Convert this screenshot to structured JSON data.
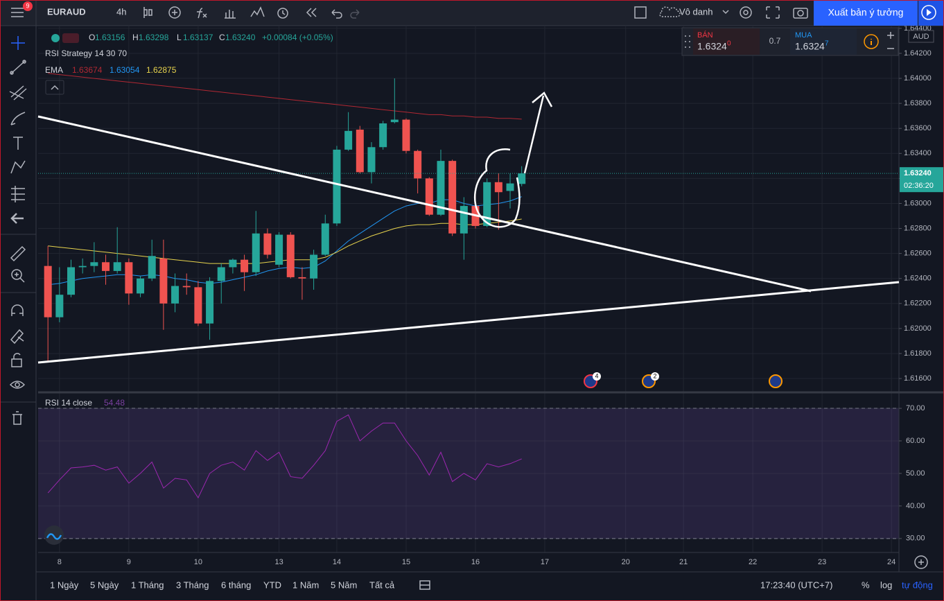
{
  "toolbar": {
    "badge": "9",
    "symbol": "EURAUD",
    "interval": "4h",
    "layout_name": "Vô danh",
    "publish": "Xuất bản ý tưởng"
  },
  "trade": {
    "sell_label": "BÁN",
    "sell_price": "1.6324",
    "sell_pip": "0",
    "spread": "0.7",
    "buy_label": "MUA",
    "buy_price": "1.6324",
    "buy_pip": "7"
  },
  "header": {
    "labels": [
      "O",
      "H",
      "L",
      "C"
    ],
    "values": [
      "1.63156",
      "1.63298",
      "1.63137",
      "1.63240"
    ],
    "change": "+0.00084 (+0.05%)"
  },
  "indicators": {
    "strategy": "RSI Strategy 14 30 70",
    "ema": "EMA"
  },
  "axis_currency": "AUD",
  "last_price": {
    "value": 1.6324,
    "label": "1.63240"
  },
  "countdown": "02:36:20",
  "events": [
    "4",
    "2"
  ],
  "bottom": {
    "ranges": [
      "1 Ngày",
      "5 Ngày",
      "1 Tháng",
      "3 Tháng",
      "6 tháng",
      "YTD",
      "1 Năm",
      "5 Năm",
      "Tất cả"
    ],
    "time": "17:23:40 (UTC+7)",
    "percent": "%",
    "log": "log",
    "auto": "tự động"
  },
  "chart_data": {
    "type": "candlestick",
    "up_color": "#26a69a",
    "down_color": "#ef5350",
    "grid": true,
    "x": [
      -1,
      0,
      1,
      2,
      3,
      4,
      5,
      6,
      7,
      8,
      9,
      10,
      11,
      12,
      13,
      14,
      15,
      16,
      17,
      18,
      19,
      20,
      21,
      22,
      23,
      24,
      25,
      26,
      27,
      28,
      29,
      30,
      31,
      32,
      33,
      34,
      35,
      36,
      37,
      38,
      39,
      40
    ],
    "candles": {
      "open": [
        1.625,
        1.6209,
        1.6227,
        1.6249,
        1.625,
        1.6253,
        1.6246,
        1.6253,
        1.6228,
        1.624,
        1.6256,
        1.622,
        1.6234,
        1.6233,
        1.6204,
        1.6238,
        1.6249,
        1.6255,
        1.6245,
        1.6276,
        1.6251,
        1.6275,
        1.6241,
        1.624,
        1.6259,
        1.6284,
        1.6343,
        1.6359,
        1.6325,
        1.6345,
        1.6365,
        1.6367,
        1.6342,
        1.632,
        1.6291,
        1.6334,
        1.6276,
        1.6298,
        1.6282,
        1.6317,
        1.631,
        1.63156
      ],
      "high": [
        1.6266,
        1.6249,
        1.6255,
        1.6256,
        1.6269,
        1.6259,
        1.6281,
        1.6256,
        1.6242,
        1.6271,
        1.6271,
        1.6244,
        1.6244,
        1.6238,
        1.6241,
        1.6252,
        1.6256,
        1.6259,
        1.6294,
        1.628,
        1.6277,
        1.6277,
        1.6249,
        1.6263,
        1.6291,
        1.6346,
        1.6373,
        1.6362,
        1.6349,
        1.6366,
        1.64,
        1.6368,
        1.6343,
        1.6321,
        1.6343,
        1.6335,
        1.6305,
        1.6312,
        1.632,
        1.6324,
        1.6324,
        1.63298
      ],
      "low": [
        1.6173,
        1.6205,
        1.6225,
        1.6244,
        1.6245,
        1.6235,
        1.6244,
        1.6219,
        1.6225,
        1.6238,
        1.6199,
        1.6213,
        1.6227,
        1.6202,
        1.6191,
        1.622,
        1.6244,
        1.623,
        1.6242,
        1.6256,
        1.6249,
        1.624,
        1.6223,
        1.6231,
        1.6258,
        1.6282,
        1.6342,
        1.6324,
        1.6316,
        1.6343,
        1.6364,
        1.634,
        1.6308,
        1.629,
        1.629,
        1.6274,
        1.6255,
        1.628,
        1.6281,
        1.6279,
        1.6296,
        1.63137
      ],
      "close": [
        1.6209,
        1.6227,
        1.6249,
        1.625,
        1.6253,
        1.6246,
        1.6253,
        1.6228,
        1.624,
        1.6258,
        1.622,
        1.6234,
        1.6233,
        1.6204,
        1.6238,
        1.6249,
        1.6255,
        1.6245,
        1.6276,
        1.6259,
        1.6275,
        1.6241,
        1.624,
        1.6259,
        1.6284,
        1.6343,
        1.6358,
        1.6325,
        1.6345,
        1.6364,
        1.6367,
        1.6342,
        1.632,
        1.6291,
        1.6334,
        1.6276,
        1.6298,
        1.6282,
        1.6317,
        1.6309,
        1.6316,
        1.6324
      ]
    },
    "series": [
      {
        "color": "#b22833",
        "values": [
          1.6404,
          1.6403,
          1.6402,
          1.6401,
          1.64,
          1.6399,
          1.6398,
          1.6397,
          1.6396,
          1.6395,
          1.6394,
          1.6393,
          1.6392,
          1.6391,
          1.639,
          1.6389,
          1.6388,
          1.6387,
          1.6386,
          1.6385,
          1.6384,
          1.6383,
          1.6382,
          1.6381,
          1.638,
          1.6379,
          1.6378,
          1.6377,
          1.6376,
          1.6375,
          1.6374,
          1.6373,
          1.6372,
          1.6371,
          1.6371,
          1.637,
          1.637,
          1.6369,
          1.6369,
          1.6368,
          1.6368,
          1.63674
        ]
      },
      {
        "color": "#2196f3",
        "values": [
          1.6235,
          1.6236,
          1.6238,
          1.624,
          1.6241,
          1.6242,
          1.6243,
          1.6243,
          1.6242,
          1.6243,
          1.6242,
          1.624,
          1.6239,
          1.6237,
          1.6236,
          1.6237,
          1.6239,
          1.6241,
          1.6243,
          1.6246,
          1.6248,
          1.6249,
          1.6248,
          1.6249,
          1.6254,
          1.6262,
          1.627,
          1.6276,
          1.6282,
          1.6288,
          1.6294,
          1.6298,
          1.63,
          1.63,
          1.6303,
          1.6303,
          1.63,
          1.6298,
          1.6299,
          1.63,
          1.6302,
          1.63054
        ]
      },
      {
        "color": "#e8d44d",
        "values": [
          1.6266,
          1.6265,
          1.6264,
          1.6263,
          1.6262,
          1.6261,
          1.626,
          1.6259,
          1.6258,
          1.6257,
          1.6256,
          1.6255,
          1.6254,
          1.6253,
          1.6252,
          1.6252,
          1.6252,
          1.6252,
          1.6252,
          1.6253,
          1.6254,
          1.6255,
          1.6255,
          1.6255,
          1.6257,
          1.6261,
          1.6266,
          1.627,
          1.6274,
          1.6277,
          1.628,
          1.6282,
          1.6283,
          1.6283,
          1.6284,
          1.6284,
          1.6283,
          1.6283,
          1.6284,
          1.6285,
          1.6286,
          1.62875
        ]
      }
    ],
    "xlim": [
      -1.85,
      72.65
    ],
    "xticks": [
      {
        "value": 0,
        "label": "8"
      },
      {
        "value": 6,
        "label": "9"
      },
      {
        "value": 12,
        "label": "10"
      },
      {
        "value": 19,
        "label": "13"
      },
      {
        "value": 24,
        "label": "14"
      },
      {
        "value": 30,
        "label": "15"
      },
      {
        "value": 36,
        "label": "16"
      },
      {
        "value": 42,
        "label": "17"
      },
      {
        "value": 49,
        "label": "20"
      },
      {
        "value": 54,
        "label": "21"
      },
      {
        "value": 60,
        "label": "22"
      },
      {
        "value": 66,
        "label": "23"
      },
      {
        "value": 72,
        "label": "24"
      }
    ],
    "ylim": [
      1.61495,
      1.64416
    ],
    "yticks": [
      {
        "value": 1.616,
        "label": "1.61600"
      },
      {
        "value": 1.618,
        "label": "1.61800"
      },
      {
        "value": 1.62,
        "label": "1.62000"
      },
      {
        "value": 1.622,
        "label": "1.62200"
      },
      {
        "value": 1.624,
        "label": "1.62400"
      },
      {
        "value": 1.626,
        "label": "1.62600"
      },
      {
        "value": 1.628,
        "label": "1.62800"
      },
      {
        "value": 1.63,
        "label": "1.63000"
      },
      {
        "value": 1.632,
        "label": "1.63200"
      },
      {
        "value": 1.634,
        "label": "1.63400"
      },
      {
        "value": 1.636,
        "label": "1.63600"
      },
      {
        "value": 1.638,
        "label": "1.63800"
      },
      {
        "value": 1.64,
        "label": "1.64000"
      },
      {
        "value": 1.642,
        "label": "1.64200"
      },
      {
        "value": 1.644,
        "label": "1.64400"
      }
    ],
    "rsi": {
      "name": "RSI 14 close",
      "color": "#9c27b0",
      "values": [
        44,
        48,
        51.7,
        52,
        52.5,
        51,
        52,
        47,
        50,
        53.5,
        45.5,
        48.5,
        48,
        42.5,
        50,
        52.5,
        53.5,
        51,
        57,
        54,
        56.5,
        49,
        48.5,
        52.5,
        57,
        66,
        68,
        60,
        63,
        65.5,
        65.5,
        60,
        55.5,
        49.5,
        56.5,
        47.5,
        50,
        48,
        53,
        52,
        53,
        54.48
      ],
      "ylim": [
        25.7,
        74.7
      ],
      "yticks": [
        {
          "value": 30,
          "label": "30.00"
        },
        {
          "value": 40,
          "label": "40.00"
        },
        {
          "value": 50,
          "label": "50.00"
        },
        {
          "value": 60,
          "label": "60.00"
        },
        {
          "value": 70,
          "label": "70.00"
        }
      ],
      "band": [
        30,
        70
      ]
    }
  }
}
